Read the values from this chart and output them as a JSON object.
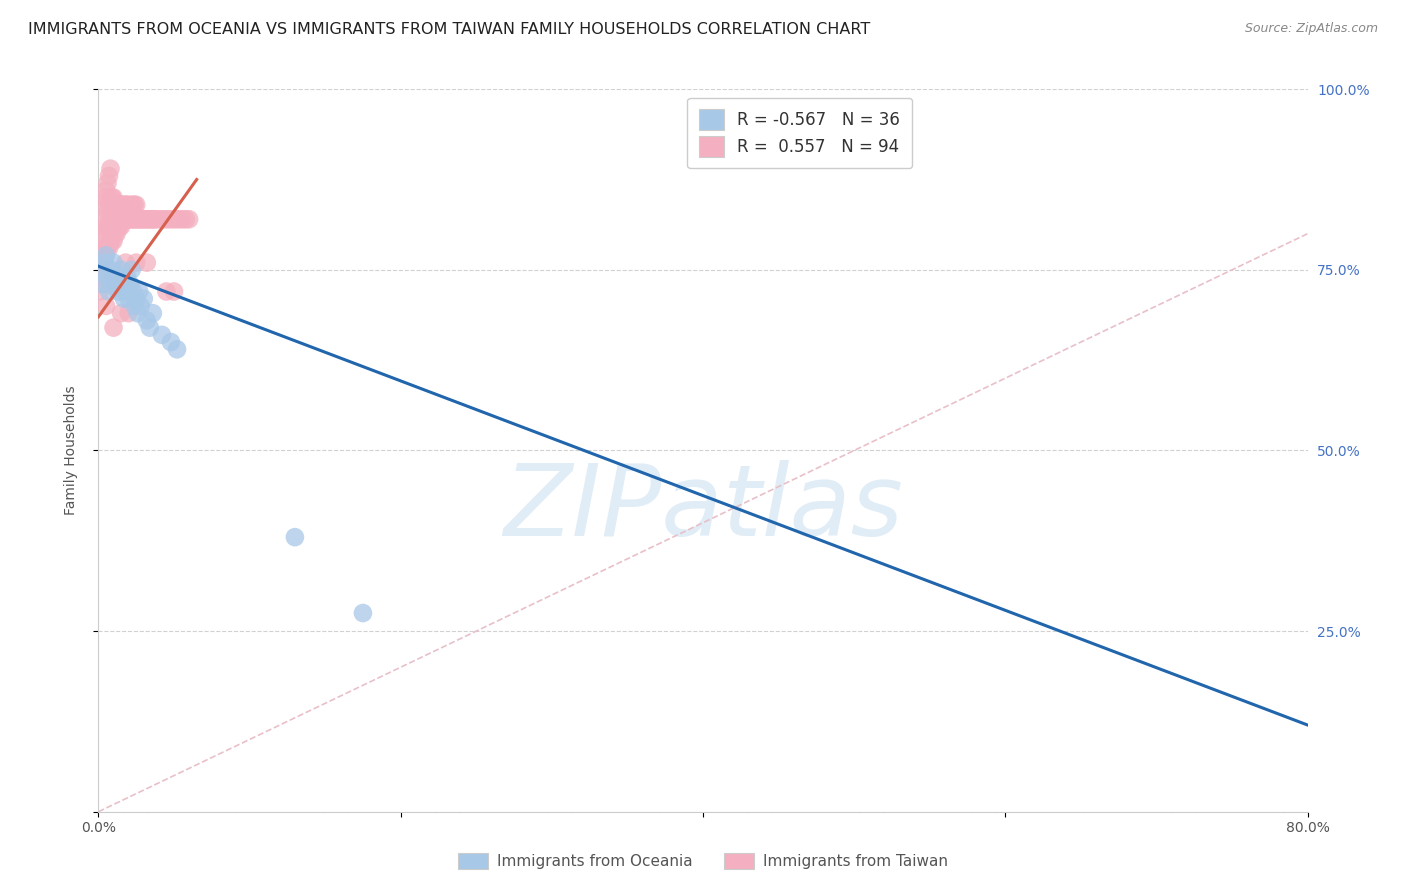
{
  "title": "IMMIGRANTS FROM OCEANIA VS IMMIGRANTS FROM TAIWAN FAMILY HOUSEHOLDS CORRELATION CHART",
  "source": "Source: ZipAtlas.com",
  "ylabel": "Family Households",
  "xlim": [
    0.0,
    0.8
  ],
  "ylim": [
    0.0,
    1.0
  ],
  "watermark": "ZIPatlas",
  "legend_blue_R": "-0.567",
  "legend_blue_N": "36",
  "legend_pink_R": " 0.557",
  "legend_pink_N": "94",
  "legend_label_blue": "Immigrants from Oceania",
  "legend_label_pink": "Immigrants from Taiwan",
  "blue_color": "#a8c8e8",
  "pink_color": "#f4b0c0",
  "blue_line_color": "#2166ac",
  "pink_line_color": "#d6604d",
  "background_color": "#ffffff",
  "grid_color": "#cccccc",
  "title_fontsize": 11.5,
  "source_fontsize": 9,
  "watermark_color": "#c8dff0",
  "watermark_fontsize": 72,
  "blue_line_x0": 0.0,
  "blue_line_y0": 0.755,
  "blue_line_x1": 0.8,
  "blue_line_y1": 0.12,
  "pink_line_x0": 0.0,
  "pink_line_y0": 0.685,
  "pink_line_x1": 0.065,
  "pink_line_y1": 0.875,
  "diag_color": "#e8c0c8",
  "blue_scatter_x": [
    0.002,
    0.003,
    0.004,
    0.005,
    0.006,
    0.007,
    0.008,
    0.009,
    0.01,
    0.011,
    0.012,
    0.013,
    0.014,
    0.015,
    0.016,
    0.017,
    0.018,
    0.019,
    0.02,
    0.021,
    0.022,
    0.023,
    0.024,
    0.025,
    0.026,
    0.027,
    0.028,
    0.03,
    0.032,
    0.034,
    0.036,
    0.042,
    0.048,
    0.052,
    0.13,
    0.175
  ],
  "blue_scatter_y": [
    0.75,
    0.73,
    0.76,
    0.77,
    0.74,
    0.72,
    0.75,
    0.73,
    0.76,
    0.74,
    0.73,
    0.72,
    0.74,
    0.75,
    0.73,
    0.71,
    0.72,
    0.74,
    0.71,
    0.73,
    0.75,
    0.72,
    0.7,
    0.71,
    0.69,
    0.72,
    0.7,
    0.71,
    0.68,
    0.67,
    0.69,
    0.66,
    0.65,
    0.64,
    0.38,
    0.275
  ],
  "pink_scatter_x": [
    0.001,
    0.002,
    0.002,
    0.003,
    0.003,
    0.003,
    0.004,
    0.004,
    0.004,
    0.005,
    0.005,
    0.005,
    0.006,
    0.006,
    0.006,
    0.006,
    0.007,
    0.007,
    0.007,
    0.007,
    0.008,
    0.008,
    0.008,
    0.008,
    0.009,
    0.009,
    0.009,
    0.01,
    0.01,
    0.01,
    0.011,
    0.011,
    0.012,
    0.012,
    0.013,
    0.013,
    0.014,
    0.014,
    0.015,
    0.015,
    0.016,
    0.016,
    0.017,
    0.017,
    0.018,
    0.018,
    0.019,
    0.019,
    0.02,
    0.02,
    0.021,
    0.022,
    0.022,
    0.023,
    0.023,
    0.024,
    0.024,
    0.025,
    0.025,
    0.026,
    0.027,
    0.028,
    0.029,
    0.03,
    0.031,
    0.032,
    0.033,
    0.034,
    0.035,
    0.036,
    0.037,
    0.038,
    0.04,
    0.042,
    0.044,
    0.046,
    0.048,
    0.05,
    0.052,
    0.054,
    0.056,
    0.058,
    0.06,
    0.032,
    0.025,
    0.018,
    0.012,
    0.008,
    0.005,
    0.045,
    0.05,
    0.02,
    0.015,
    0.01
  ],
  "pink_scatter_y": [
    0.72,
    0.74,
    0.78,
    0.76,
    0.8,
    0.84,
    0.77,
    0.81,
    0.85,
    0.78,
    0.82,
    0.86,
    0.78,
    0.8,
    0.83,
    0.87,
    0.78,
    0.81,
    0.84,
    0.88,
    0.79,
    0.82,
    0.85,
    0.89,
    0.79,
    0.82,
    0.85,
    0.79,
    0.82,
    0.85,
    0.8,
    0.83,
    0.8,
    0.84,
    0.81,
    0.84,
    0.81,
    0.84,
    0.81,
    0.84,
    0.82,
    0.84,
    0.82,
    0.84,
    0.82,
    0.84,
    0.82,
    0.84,
    0.82,
    0.84,
    0.82,
    0.82,
    0.84,
    0.82,
    0.84,
    0.82,
    0.84,
    0.82,
    0.84,
    0.82,
    0.82,
    0.82,
    0.82,
    0.82,
    0.82,
    0.82,
    0.82,
    0.82,
    0.82,
    0.82,
    0.82,
    0.82,
    0.82,
    0.82,
    0.82,
    0.82,
    0.82,
    0.82,
    0.82,
    0.82,
    0.82,
    0.82,
    0.82,
    0.76,
    0.76,
    0.76,
    0.73,
    0.73,
    0.7,
    0.72,
    0.72,
    0.69,
    0.69,
    0.67
  ]
}
